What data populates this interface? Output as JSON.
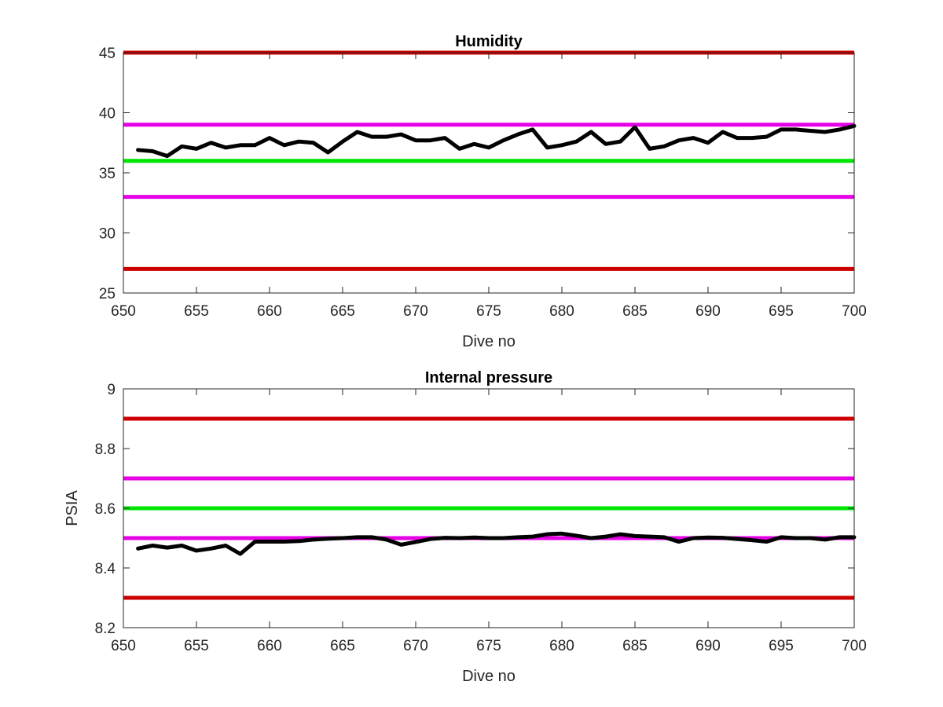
{
  "chart_data": [
    {
      "type": "line",
      "title": "Humidity",
      "xlabel": "Dive no",
      "ylabel": "",
      "xlim": [
        650,
        700
      ],
      "ylim": [
        25,
        45
      ],
      "xticks": [
        650,
        655,
        660,
        665,
        670,
        675,
        680,
        685,
        690,
        695,
        700
      ],
      "yticks": [
        25,
        30,
        35,
        40,
        45
      ],
      "grid": false,
      "reference_lines": [
        {
          "y": 45,
          "color": "#cc0000"
        },
        {
          "y": 39,
          "color": "#e600e6"
        },
        {
          "y": 36,
          "color": "#00e600"
        },
        {
          "y": 33,
          "color": "#e600e6"
        },
        {
          "y": 27,
          "color": "#cc0000"
        }
      ],
      "series": [
        {
          "color": "#000000",
          "x": [
            651,
            652,
            653,
            654,
            655,
            656,
            657,
            658,
            659,
            660,
            661,
            662,
            663,
            664,
            665,
            666,
            667,
            668,
            669,
            670,
            671,
            672,
            673,
            674,
            675,
            676,
            677,
            678,
            679,
            680,
            681,
            682,
            683,
            684,
            685,
            686,
            687,
            688,
            689,
            690,
            691,
            692,
            693,
            694,
            695,
            696,
            697,
            698,
            699,
            700
          ],
          "values": [
            36.9,
            36.8,
            36.4,
            37.2,
            37.0,
            37.5,
            37.1,
            37.3,
            37.3,
            37.9,
            37.3,
            37.6,
            37.5,
            36.7,
            37.6,
            38.4,
            38.0,
            38.0,
            38.2,
            37.7,
            37.7,
            37.9,
            37.0,
            37.4,
            37.1,
            37.7,
            38.2,
            38.6,
            37.1,
            37.3,
            37.6,
            38.4,
            37.4,
            37.6,
            38.8,
            37.0,
            37.2,
            37.7,
            37.9,
            37.5,
            38.4,
            37.9,
            37.9,
            38.0,
            38.6,
            38.6,
            38.5,
            38.4,
            38.6,
            38.9
          ]
        }
      ]
    },
    {
      "type": "line",
      "title": "Internal pressure",
      "xlabel": "Dive no",
      "ylabel": "PSIA",
      "xlim": [
        650,
        700
      ],
      "ylim": [
        8.2,
        9.0
      ],
      "xticks": [
        650,
        655,
        660,
        665,
        670,
        675,
        680,
        685,
        690,
        695,
        700
      ],
      "yticks": [
        8.2,
        8.4,
        8.6,
        8.8,
        9.0
      ],
      "ytick_labels": [
        "8.2",
        "8.4",
        "8.6",
        "8.8",
        "9"
      ],
      "grid": false,
      "reference_lines": [
        {
          "y": 8.9,
          "color": "#cc0000"
        },
        {
          "y": 8.7,
          "color": "#e600e6"
        },
        {
          "y": 8.6,
          "color": "#00e600"
        },
        {
          "y": 8.5,
          "color": "#e600e6"
        },
        {
          "y": 8.3,
          "color": "#cc0000"
        }
      ],
      "series": [
        {
          "color": "#000000",
          "x": [
            651,
            652,
            653,
            654,
            655,
            656,
            657,
            658,
            659,
            660,
            661,
            662,
            663,
            664,
            665,
            666,
            667,
            668,
            669,
            670,
            671,
            672,
            673,
            674,
            675,
            676,
            677,
            678,
            679,
            680,
            681,
            682,
            683,
            684,
            685,
            686,
            687,
            688,
            689,
            690,
            691,
            692,
            693,
            694,
            695,
            696,
            697,
            698,
            699,
            700
          ],
          "values": [
            8.465,
            8.475,
            8.468,
            8.475,
            8.458,
            8.465,
            8.475,
            8.447,
            8.488,
            8.488,
            8.488,
            8.49,
            8.495,
            8.498,
            8.5,
            8.503,
            8.503,
            8.495,
            8.478,
            8.487,
            8.497,
            8.501,
            8.5,
            8.502,
            8.5,
            8.5,
            8.503,
            8.505,
            8.513,
            8.515,
            8.508,
            8.5,
            8.505,
            8.513,
            8.507,
            8.505,
            8.503,
            8.488,
            8.5,
            8.502,
            8.501,
            8.497,
            8.493,
            8.488,
            8.503,
            8.5,
            8.5,
            8.495,
            8.503,
            8.503
          ]
        }
      ]
    }
  ]
}
